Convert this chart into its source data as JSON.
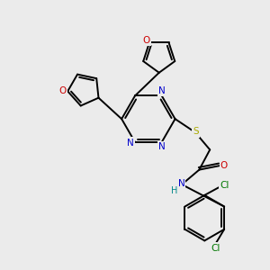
{
  "bg_color": "#ebebeb",
  "bond_color": "#000000",
  "N_color": "#0000cc",
  "O_color": "#cc0000",
  "S_color": "#aaaa00",
  "Cl_color": "#007700",
  "H_color": "#008888",
  "line_width": 1.4,
  "font_size": 7.5,
  "xlim": [
    0,
    10
  ],
  "ylim": [
    0,
    10
  ]
}
